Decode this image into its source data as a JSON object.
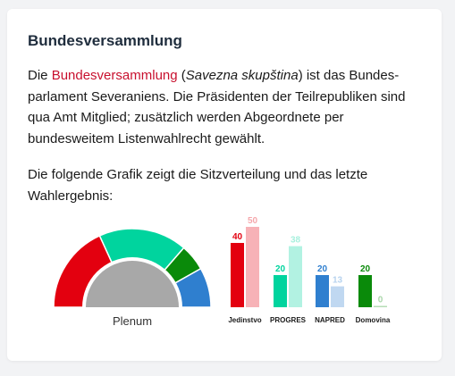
{
  "section": {
    "title": "Bundesversammlung",
    "p1": {
      "pre": "Die ",
      "link": "Bundesversammlung",
      "mid1": " (",
      "native": "Savezna skupština",
      "mid2": ") ist das Bundes-parlament Severaniens. Die Präsidenten der Teilrepubliken sind qua Amt Mitglied; zusätzlich werden Abgeordnete per bundesweitem Listenwahlrecht gewählt."
    },
    "p2": "Die folgende Grafik zeigt die Sitzverteilung und das letzte Wahlergebnis:"
  },
  "chart_data": [
    {
      "type": "pie",
      "variant": "parliament-semicircle",
      "label": "Plenum",
      "slices": [
        {
          "value": 20,
          "color": "#e3000f"
        },
        {
          "value": 20,
          "color": "#00d49e"
        },
        {
          "value": 6,
          "color": "#0a8a0a"
        },
        {
          "value": 9,
          "color": "#2f7fcf"
        }
      ],
      "center_color": "#a8a8a8"
    },
    {
      "type": "bar",
      "categories": [
        "Jedinstvo",
        "PROGRES",
        "NAPRED",
        "Domovina"
      ],
      "series": [
        {
          "values": [
            40,
            20,
            20,
            20
          ]
        },
        {
          "values": [
            50,
            38,
            13,
            0
          ]
        }
      ],
      "colors": [
        "#e3000f",
        "#00d49e",
        "#2f7fcf",
        "#0a8a0a"
      ],
      "ylim": [
        0,
        50
      ]
    }
  ]
}
